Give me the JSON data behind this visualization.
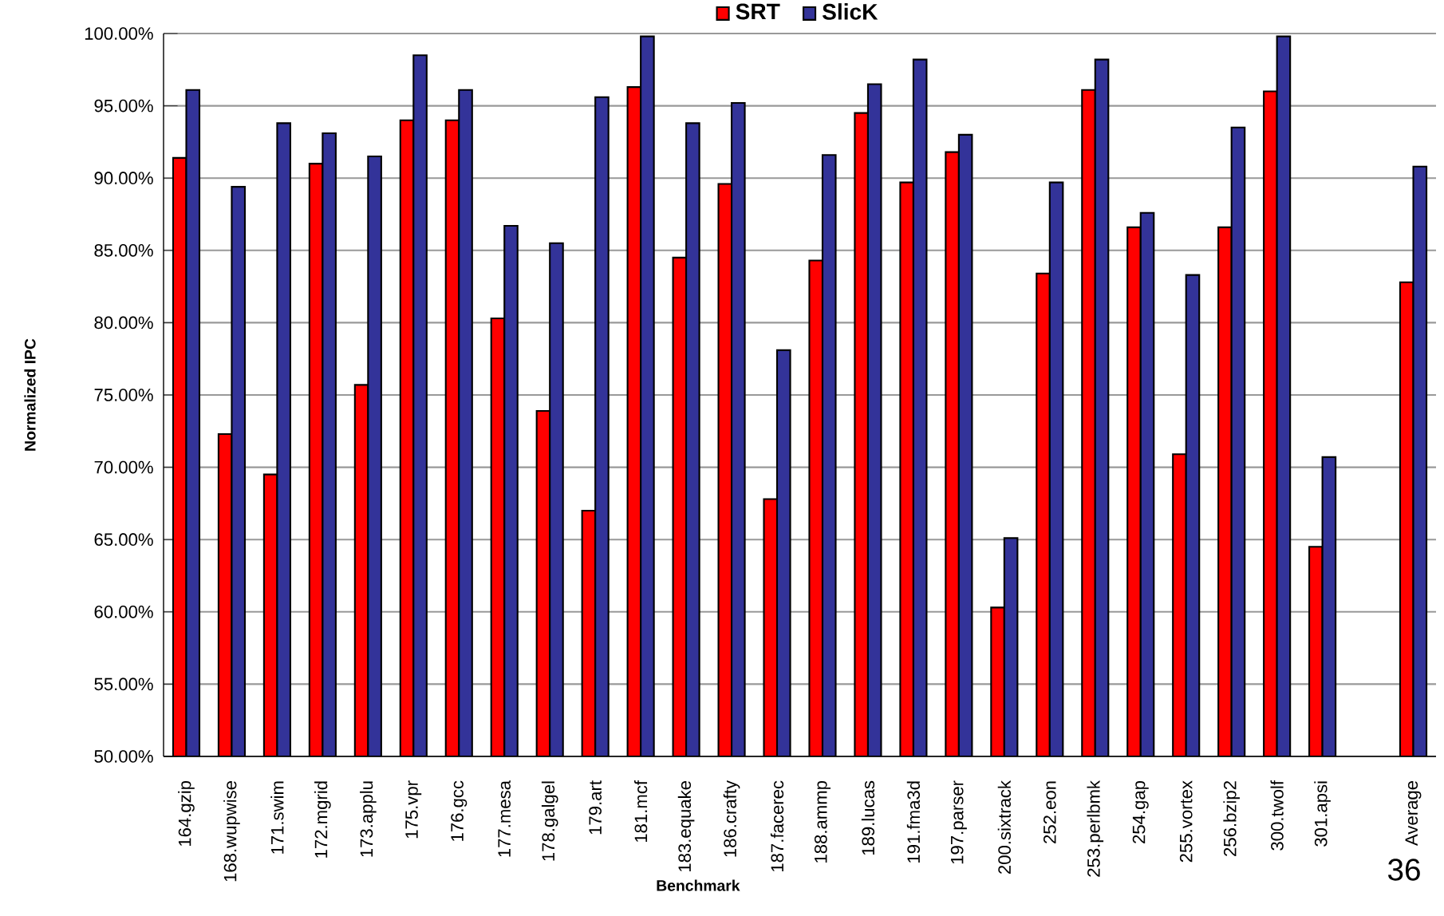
{
  "chart_data": {
    "type": "bar",
    "xlabel": "Benchmark",
    "ylabel": "Normalized IPC",
    "categories": [
      "164.gzip",
      "168.wupwise",
      "171.swim",
      "172.mgrid",
      "173.applu",
      "175.vpr",
      "176.gcc",
      "177.mesa",
      "178.galgel",
      "179.art",
      "181.mcf",
      "183.equake",
      "186.crafty",
      "187.facerec",
      "188.ammp",
      "189.lucas",
      "191.fma3d",
      "197.parser",
      "200.sixtrack",
      "252.eon",
      "253.perlbmk",
      "254.gap",
      "255.vortex",
      "256.bzip2",
      "300.twolf",
      "301.apsi",
      null,
      "Average"
    ],
    "series": [
      {
        "name": "SRT",
        "color": "#ff0000",
        "values": [
          91.4,
          72.3,
          69.5,
          91.0,
          75.7,
          94.0,
          94.0,
          80.3,
          73.9,
          67.0,
          96.3,
          84.5,
          89.6,
          67.8,
          84.3,
          94.5,
          89.7,
          91.8,
          60.3,
          83.4,
          96.1,
          86.6,
          70.9,
          86.6,
          96.0,
          64.5,
          null,
          82.8
        ]
      },
      {
        "name": "SlicK",
        "color": "#333399",
        "values": [
          96.1,
          89.4,
          93.8,
          93.1,
          91.5,
          98.5,
          96.1,
          86.7,
          85.5,
          95.6,
          99.8,
          93.8,
          95.2,
          78.1,
          91.6,
          96.5,
          98.2,
          93.0,
          65.1,
          89.7,
          98.2,
          87.6,
          83.3,
          93.5,
          99.8,
          70.7,
          null,
          90.8
        ]
      }
    ],
    "ylim": [
      50,
      100
    ],
    "yticks": [
      {
        "value": 50,
        "label": "50.00%"
      },
      {
        "value": 55,
        "label": "55.00%"
      },
      {
        "value": 60,
        "label": "60.00%"
      },
      {
        "value": 65,
        "label": "65.00%"
      },
      {
        "value": 70,
        "label": "70.00%"
      },
      {
        "value": 75,
        "label": "75.00%"
      },
      {
        "value": 80,
        "label": "80.00%"
      },
      {
        "value": 85,
        "label": "85.00%"
      },
      {
        "value": 90,
        "label": "90.00%"
      },
      {
        "value": 95,
        "label": "95.00%"
      },
      {
        "value": 100,
        "label": "100.00%"
      }
    ],
    "grid": "y",
    "legend": "top",
    "annotations": [
      "36"
    ]
  }
}
